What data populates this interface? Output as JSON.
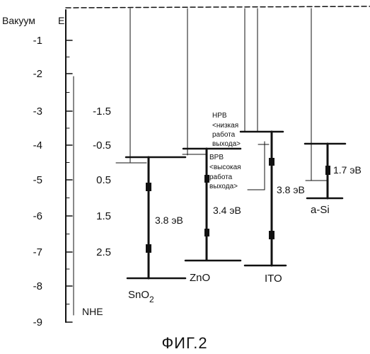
{
  "diagram": {
    "axis_title": "Вакуум",
    "energy_symbol": "E",
    "vacuum_ticks": [
      "-1",
      "-2",
      "-3",
      "-4",
      "-5",
      "-6",
      "-7",
      "-8",
      "-9"
    ],
    "nhe_ticks": [
      "-1.5",
      "-0.5",
      "0.5",
      "1.5",
      "2.5"
    ],
    "nhe_label": "NHE",
    "materials": [
      {
        "name": "SnO",
        "subscript": "2",
        "gap": "3.8 эВ"
      },
      {
        "name": "ZnO",
        "subscript": "",
        "gap": "3.4 эВ"
      },
      {
        "name": "ITO",
        "subscript": "",
        "gap": "3.8 эВ"
      },
      {
        "name": "a-Si",
        "subscript": "",
        "gap": "1.7 эВ"
      }
    ],
    "annotations": {
      "low_work_function": [
        "НРВ",
        "<низкая",
        "работа",
        "выхода>"
      ],
      "high_work_function": [
        "ВРВ",
        "<высокая",
        "работа",
        "выхода>"
      ]
    },
    "caption": "ФИГ.2"
  }
}
